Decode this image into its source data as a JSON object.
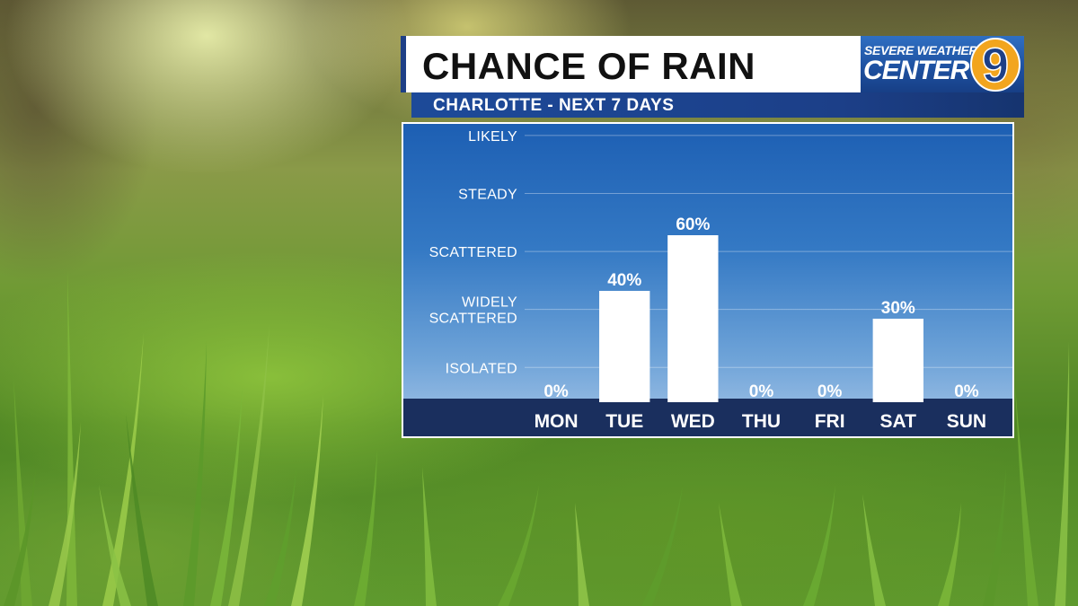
{
  "header": {
    "title": "CHANCE OF RAIN",
    "subtitle": "CHARLOTTE - NEXT 7 DAYS"
  },
  "logo": {
    "line1": "SEVERE WEATHER",
    "line2": "CENTER",
    "number": "9"
  },
  "colors": {
    "brand_blue": "#1e3f86",
    "bar_fill": "#ffffff",
    "day_bar": "#1a2f5e"
  },
  "chart_data": {
    "type": "bar",
    "categories": [
      "MON",
      "TUE",
      "WED",
      "THU",
      "FRI",
      "SAT",
      "SUN"
    ],
    "values": [
      0,
      40,
      60,
      0,
      0,
      30,
      0
    ],
    "value_labels": [
      "0%",
      "40%",
      "60%",
      "0%",
      "0%",
      "30%",
      "0%"
    ],
    "y_unit": "%",
    "ylim": [
      0,
      100
    ],
    "y_ticks": [
      {
        "value": 12.5,
        "label": [
          "ISOLATED"
        ]
      },
      {
        "value": 33.33,
        "label": [
          "WIDELY",
          "SCATTERED"
        ]
      },
      {
        "value": 54.17,
        "label": [
          "SCATTERED"
        ]
      },
      {
        "value": 75,
        "label": [
          "STEADY"
        ]
      },
      {
        "value": 95.83,
        "label": [
          "LIKELY"
        ]
      }
    ],
    "grid": true
  }
}
